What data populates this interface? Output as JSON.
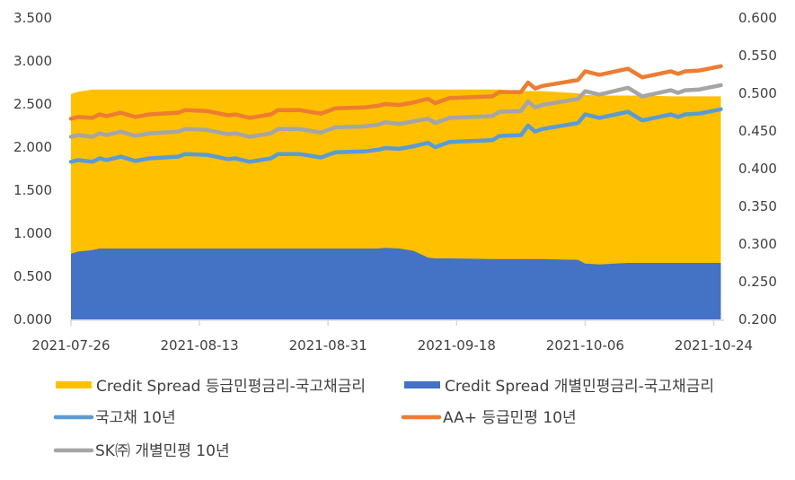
{
  "chart_data": {
    "type": "line",
    "title": "",
    "left_axis": {
      "min": 0,
      "max": 3.5,
      "step": 0.5,
      "ticks": [
        "0.000",
        "0.500",
        "1.000",
        "1.500",
        "2.000",
        "2.500",
        "3.000",
        "3.500"
      ]
    },
    "right_axis": {
      "min": 0.2,
      "max": 0.6,
      "step": 0.05,
      "ticks": [
        "0.200",
        "0.250",
        "0.300",
        "0.350",
        "0.400",
        "0.450",
        "0.500",
        "0.550",
        "0.600"
      ]
    },
    "x_ticks": [
      "2021-07-26",
      "2021-08-13",
      "2021-08-31",
      "2021-09-18",
      "2021-10-06",
      "2021-10-24"
    ],
    "grid": false,
    "legend_placement": "bottom",
    "x": [
      "2021-07-26",
      "2021-07-27",
      "2021-07-29",
      "2021-07-30",
      "2021-07-31",
      "2021-08-02",
      "2021-08-04",
      "2021-08-06",
      "2021-08-10",
      "2021-08-11",
      "2021-08-14",
      "2021-08-17",
      "2021-08-18",
      "2021-08-20",
      "2021-08-23",
      "2021-08-24",
      "2021-08-27",
      "2021-08-30",
      "2021-09-01",
      "2021-09-05",
      "2021-09-07",
      "2021-09-08",
      "2021-09-10",
      "2021-09-12",
      "2021-09-14",
      "2021-09-15",
      "2021-09-17",
      "2021-09-23",
      "2021-09-24",
      "2021-09-27",
      "2021-09-28",
      "2021-09-29",
      "2021-09-30",
      "2021-10-05",
      "2021-10-06",
      "2021-10-08",
      "2021-10-12",
      "2021-10-14",
      "2021-10-18",
      "2021-10-19",
      "2021-10-20",
      "2021-10-22",
      "2021-10-25"
    ],
    "series": [
      {
        "name": "Credit Spread 등급민평금리-국고채금리",
        "type": "area",
        "axis": "right",
        "color": "#FFC000",
        "values": [
          0.499,
          0.502,
          0.505,
          0.505,
          0.505,
          0.505,
          0.505,
          0.505,
          0.505,
          0.505,
          0.505,
          0.505,
          0.505,
          0.505,
          0.505,
          0.505,
          0.505,
          0.505,
          0.505,
          0.505,
          0.505,
          0.505,
          0.505,
          0.505,
          0.505,
          0.505,
          0.505,
          0.505,
          0.505,
          0.503,
          0.503,
          0.503,
          0.503,
          0.5,
          0.498,
          0.497,
          0.497,
          0.497,
          0.496,
          0.496,
          0.496,
          0.496,
          0.496
        ]
      },
      {
        "name": "Credit Spread 개별민평금리-국고채금리",
        "type": "area",
        "axis": "right",
        "color": "#4472C4",
        "values": [
          0.287,
          0.29,
          0.292,
          0.294,
          0.294,
          0.294,
          0.294,
          0.294,
          0.294,
          0.294,
          0.294,
          0.294,
          0.294,
          0.294,
          0.294,
          0.294,
          0.294,
          0.294,
          0.294,
          0.294,
          0.294,
          0.295,
          0.294,
          0.291,
          0.282,
          0.281,
          0.281,
          0.28,
          0.28,
          0.28,
          0.28,
          0.28,
          0.28,
          0.279,
          0.274,
          0.273,
          0.275,
          0.275,
          0.275,
          0.275,
          0.275,
          0.275,
          0.275
        ]
      },
      {
        "name": "국고채 10년",
        "type": "line",
        "axis": "left",
        "color": "#5B9BD5",
        "values": [
          1.83,
          1.85,
          1.83,
          1.87,
          1.85,
          1.89,
          1.84,
          1.87,
          1.89,
          1.92,
          1.91,
          1.86,
          1.87,
          1.83,
          1.87,
          1.92,
          1.92,
          1.88,
          1.94,
          1.95,
          1.97,
          1.99,
          1.98,
          2.01,
          2.05,
          2.0,
          2.06,
          2.08,
          2.13,
          2.14,
          2.25,
          2.18,
          2.21,
          2.28,
          2.38,
          2.34,
          2.41,
          2.31,
          2.38,
          2.35,
          2.38,
          2.39,
          2.44
        ]
      },
      {
        "name": "AA+ 등급민평 10년",
        "type": "line",
        "axis": "left",
        "color": "#ED7D31",
        "values": [
          2.33,
          2.35,
          2.34,
          2.38,
          2.36,
          2.4,
          2.35,
          2.38,
          2.4,
          2.43,
          2.42,
          2.37,
          2.38,
          2.34,
          2.38,
          2.43,
          2.43,
          2.39,
          2.45,
          2.46,
          2.48,
          2.5,
          2.49,
          2.52,
          2.56,
          2.51,
          2.57,
          2.59,
          2.64,
          2.64,
          2.75,
          2.68,
          2.71,
          2.78,
          2.88,
          2.84,
          2.91,
          2.81,
          2.88,
          2.85,
          2.88,
          2.89,
          2.94
        ]
      },
      {
        "name": "SK㈜ 개별민평 10년",
        "type": "line",
        "axis": "left",
        "color": "#A5A5A5",
        "values": [
          2.12,
          2.14,
          2.12,
          2.16,
          2.14,
          2.18,
          2.13,
          2.16,
          2.18,
          2.21,
          2.2,
          2.15,
          2.16,
          2.12,
          2.16,
          2.21,
          2.21,
          2.17,
          2.23,
          2.24,
          2.26,
          2.29,
          2.27,
          2.3,
          2.33,
          2.28,
          2.34,
          2.36,
          2.41,
          2.42,
          2.53,
          2.46,
          2.49,
          2.56,
          2.65,
          2.61,
          2.69,
          2.59,
          2.66,
          2.63,
          2.66,
          2.67,
          2.72
        ]
      }
    ]
  }
}
